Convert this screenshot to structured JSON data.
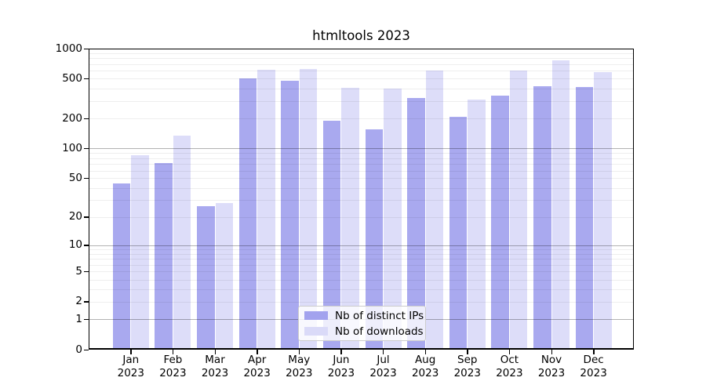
{
  "chart_data": {
    "type": "bar",
    "title": "htmltools 2023",
    "categories": [
      "Jan 2023",
      "Feb 2023",
      "Mar 2023",
      "Apr 2023",
      "May 2023",
      "Jun 2023",
      "Jul 2023",
      "Aug 2023",
      "Sep 2023",
      "Oct 2023",
      "Nov 2023",
      "Dec 2023"
    ],
    "series": [
      {
        "name": "Nb of distinct IPs",
        "color": "#a2a2ee",
        "values": [
          44,
          72,
          26,
          505,
          475,
          190,
          155,
          320,
          210,
          340,
          420,
          410
        ]
      },
      {
        "name": "Nb of downloads",
        "color": "#dadaf8",
        "values": [
          86,
          135,
          28,
          610,
          625,
          405,
          400,
          605,
          312,
          600,
          760,
          580
        ]
      }
    ],
    "xlabel": "",
    "ylabel": "",
    "yscale": "log1p",
    "ylim": [
      0,
      1000
    ],
    "yticks": [
      1000,
      500,
      200,
      100,
      50,
      20,
      10,
      5,
      2,
      1,
      0
    ],
    "grid": "on",
    "grid_major_values": [
      1,
      10,
      100
    ],
    "grid_minor_values": [
      2,
      3,
      4,
      5,
      6,
      7,
      8,
      9,
      20,
      30,
      40,
      50,
      60,
      70,
      80,
      90,
      200,
      300,
      400,
      500,
      600,
      700,
      800,
      900
    ],
    "legend_position": "lower center inside"
  },
  "colors": {
    "distinct_ips_bar": "#a2a2ee",
    "downloads_bar": "#dadaf8",
    "spine": "#000000",
    "grid_major": "#b3b3b3",
    "grid_minor": "#ededed",
    "legend_border": "#cccccc"
  }
}
